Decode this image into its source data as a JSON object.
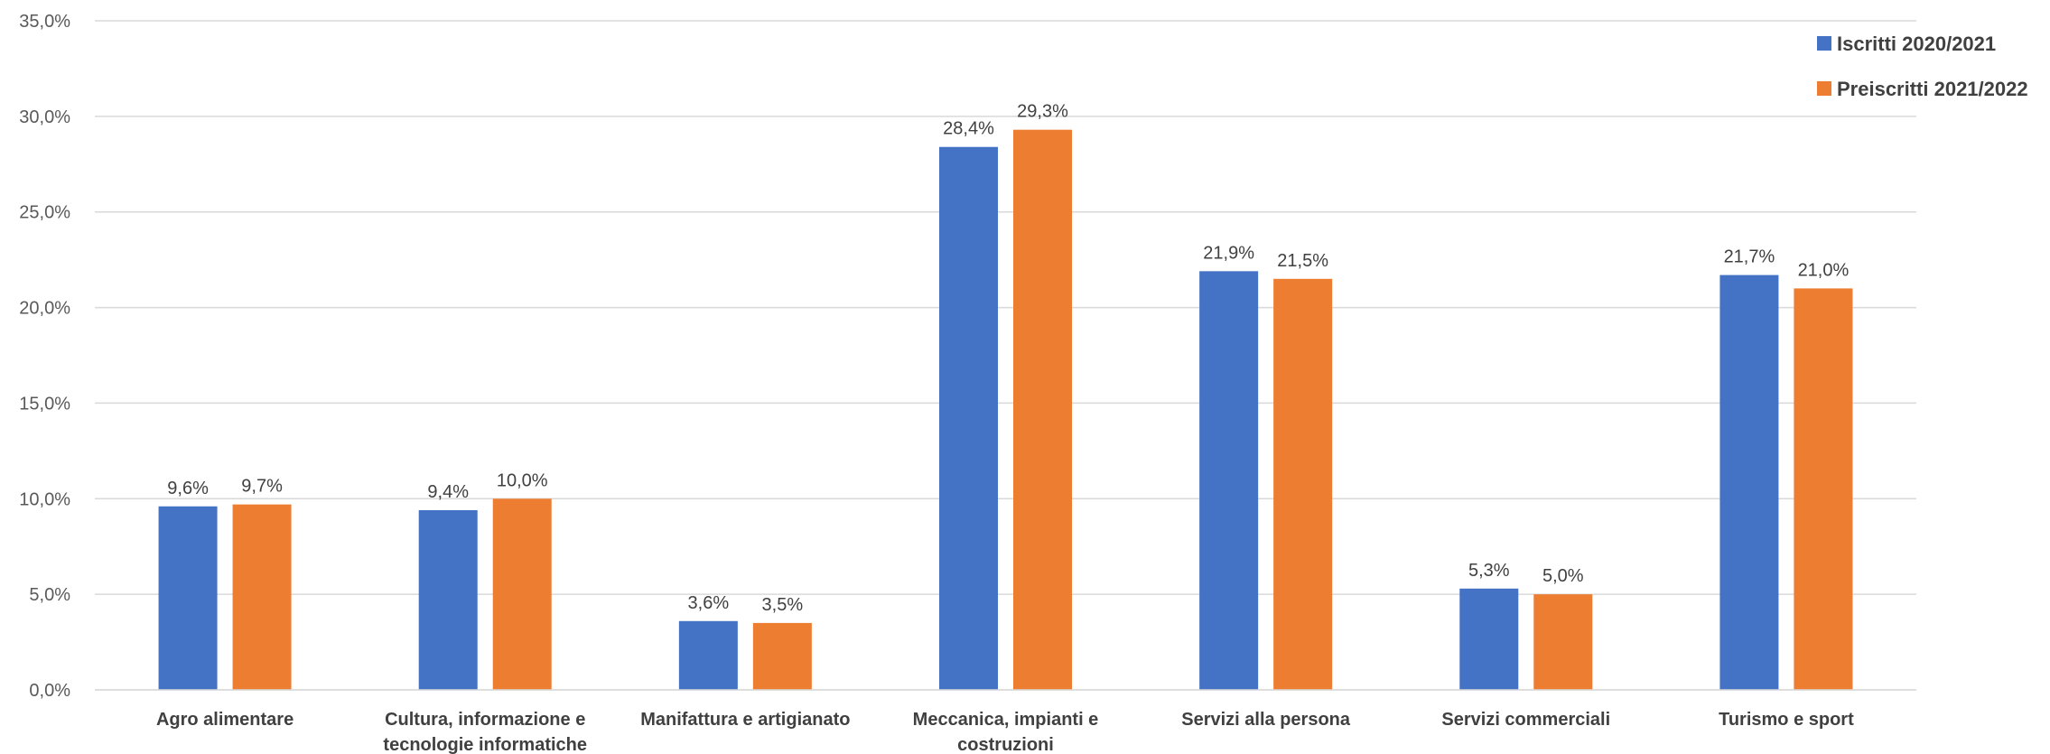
{
  "chart_data": {
    "type": "bar",
    "categories": [
      [
        "Agro alimentare"
      ],
      [
        "Cultura, informazione e",
        "tecnologie  informatiche"
      ],
      [
        "Manifattura e artigianato"
      ],
      [
        "Meccanica, impianti e",
        "costruzioni"
      ],
      [
        "Servizi alla persona"
      ],
      [
        "Servizi commerciali"
      ],
      [
        "Turismo e sport"
      ]
    ],
    "series": [
      {
        "name": "Iscritti 2020/2021",
        "values": [
          9.6,
          9.4,
          3.6,
          28.4,
          21.9,
          5.3,
          21.7
        ],
        "labels": [
          "9,6%",
          "9,4%",
          "3,6%",
          "28,4%",
          "21,9%",
          "5,3%",
          "21,7%"
        ],
        "color": "#4472C4"
      },
      {
        "name": "Preiscritti 2021/2022",
        "values": [
          9.7,
          10.0,
          3.5,
          29.3,
          21.5,
          5.0,
          21.0
        ],
        "labels": [
          "9,7%",
          "10,0%",
          "3,5%",
          "29,3%",
          "21,5%",
          "5,0%",
          "21,0%"
        ],
        "color": "#ED7D31"
      }
    ],
    "ylim": [
      0,
      35
    ],
    "yticks": [
      0,
      5,
      10,
      15,
      20,
      25,
      30,
      35
    ],
    "ytick_labels": [
      "0,0%",
      "5,0%",
      "10,0%",
      "15,0%",
      "20,0%",
      "25,0%",
      "30,0%",
      "35,0%"
    ],
    "grid": true,
    "legend_position": "top-right",
    "gridline_color": "#d9d9d9"
  }
}
